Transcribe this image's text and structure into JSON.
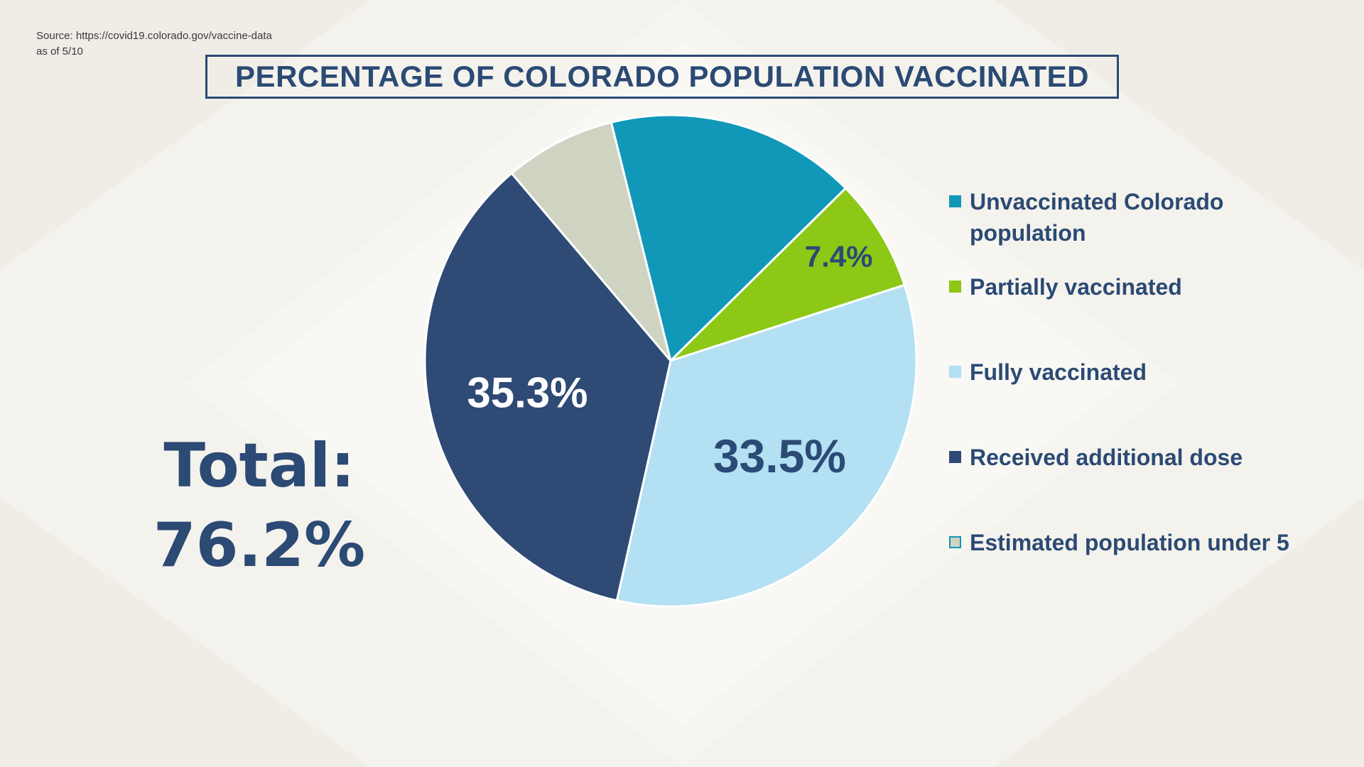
{
  "source": {
    "line1": "Source: https://covid19.colorado.gov/vaccine-data",
    "line2": "as of 5/10"
  },
  "title": "PERCENTAGE OF COLORADO POPULATION VACCINATED",
  "total": {
    "label": "Total:",
    "value": "76.2%"
  },
  "colors": {
    "navy": "#2b4a74",
    "background": "#f4f2ec"
  },
  "chart_data": {
    "type": "pie",
    "title": "PERCENTAGE OF COLORADO POPULATION VACCINATED",
    "start_angle_deg": -14,
    "slices": [
      {
        "name": "Unvaccinated Colorado population",
        "value": 16.5,
        "color": "#1198b8",
        "label": ""
      },
      {
        "name": "Partially vaccinated",
        "value": 7.4,
        "color": "#8cc815",
        "label": "7.4%",
        "label_color": "#2b4a74"
      },
      {
        "name": "Fully vaccinated",
        "value": 33.5,
        "color": "#b3e0f2",
        "label": "33.5%",
        "label_color": "#2b4a74"
      },
      {
        "name": "Received additional dose",
        "value": 35.3,
        "color": "#2e4a75",
        "label": "35.3%",
        "label_color": "#ffffff"
      },
      {
        "name": "Estimated population under 5",
        "value": 7.3,
        "color": "#cfd3c2",
        "label": ""
      }
    ],
    "legend": [
      {
        "label": "Unvaccinated Colorado population",
        "color": "#1198b8"
      },
      {
        "label": "Partially vaccinated",
        "color": "#8cc815"
      },
      {
        "label": "Fully vaccinated",
        "color": "#b3e0f2"
      },
      {
        "label": "Received additional dose",
        "color": "#2e4a75"
      },
      {
        "label": "Estimated population under 5",
        "color": "#cfd3c2",
        "border": "#1198b8"
      }
    ],
    "legend_position": "right"
  }
}
